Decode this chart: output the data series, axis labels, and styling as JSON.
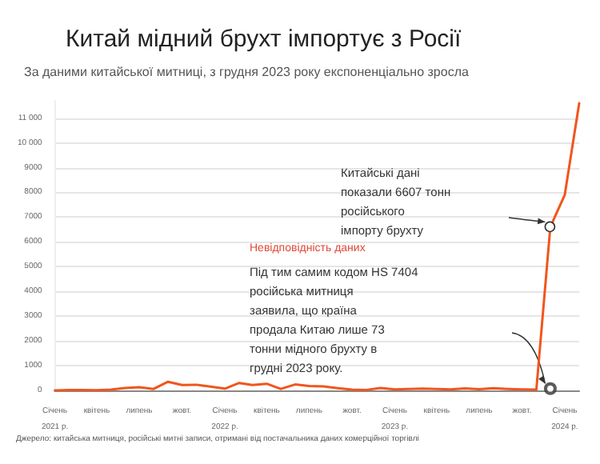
{
  "chart_data": {
    "type": "line",
    "title": "Китай мідний брухт імпортує з Росії",
    "subtitle": "За даними китайської митниці, з грудня 2023 року експоненціально зросла",
    "x": [
      "2021-01",
      "2021-02",
      "2021-03",
      "2021-04",
      "2021-05",
      "2021-06",
      "2021-07",
      "2021-08",
      "2021-09",
      "2021-10",
      "2021-11",
      "2021-12",
      "2022-01",
      "2022-02",
      "2022-03",
      "2022-04",
      "2022-05",
      "2022-06",
      "2022-07",
      "2022-08",
      "2022-09",
      "2022-10",
      "2022-11",
      "2022-12",
      "2023-01",
      "2023-02",
      "2023-03",
      "2023-04",
      "2023-05",
      "2023-06",
      "2023-07",
      "2023-08",
      "2023-09",
      "2023-10",
      "2023-11",
      "2023-12",
      "2024-01",
      "2024-02"
    ],
    "series": [
      {
        "color": "#f0561d",
        "values": [
          0,
          20,
          20,
          10,
          30,
          100,
          130,
          60,
          350,
          220,
          230,
          150,
          70,
          300,
          220,
          270,
          60,
          240,
          180,
          160,
          90,
          30,
          20,
          100,
          40,
          60,
          70,
          60,
          40,
          80,
          50,
          90,
          60,
          40,
          30,
          6607,
          7900,
          11600
        ]
      },
      {
        "type": "scatter",
        "color": "#333333",
        "x": [
          "2023-12"
        ],
        "values": [
          73
        ]
      }
    ],
    "xlim": [
      "2021-01",
      "2024-02"
    ],
    "xticks": [
      {
        "value": "2021-01",
        "label": "Січень 2021 р."
      },
      {
        "value": "2021-04",
        "label": "квітень"
      },
      {
        "value": "2021-07",
        "label": "липень"
      },
      {
        "value": "2021-10",
        "label": "жовт."
      },
      {
        "value": "2022-01",
        "label": "Січень 2022 р."
      },
      {
        "value": "2022-04",
        "label": "квітень"
      },
      {
        "value": "2022-07",
        "label": "липень"
      },
      {
        "value": "2022-10",
        "label": "жовт."
      },
      {
        "value": "2023-01",
        "label": "Січень 2023 р."
      },
      {
        "value": "2023-04",
        "label": "квітень"
      },
      {
        "value": "2023-07",
        "label": "липень"
      },
      {
        "value": "2023-10",
        "label": "жовт."
      },
      {
        "value": "2024-01",
        "label": "Січень 2024 р."
      }
    ],
    "ylim": [
      0,
      11700
    ],
    "yticks": [
      0,
      1000,
      2000,
      3000,
      4000,
      5000,
      6000,
      7000,
      8000,
      9000,
      {
        "value": 10000,
        "label": "10 000"
      },
      {
        "value": 11000,
        "label": "11 000"
      }
    ],
    "grid": "y",
    "line_style": "solid",
    "annotations": [
      "Китайські дані показали 6607 тонн російського імпорту брухту",
      "Невідповідність даних",
      "Під тим самим кодом HS 7404 російська митниця заявила, що країна продала Китаю лише 73 тонни мідного брухту в грудні 2023 року.",
      "Джерело: китайська митниця, російські митні записи, отримані від постачальника даних комерційної торгівлі"
    ]
  }
}
